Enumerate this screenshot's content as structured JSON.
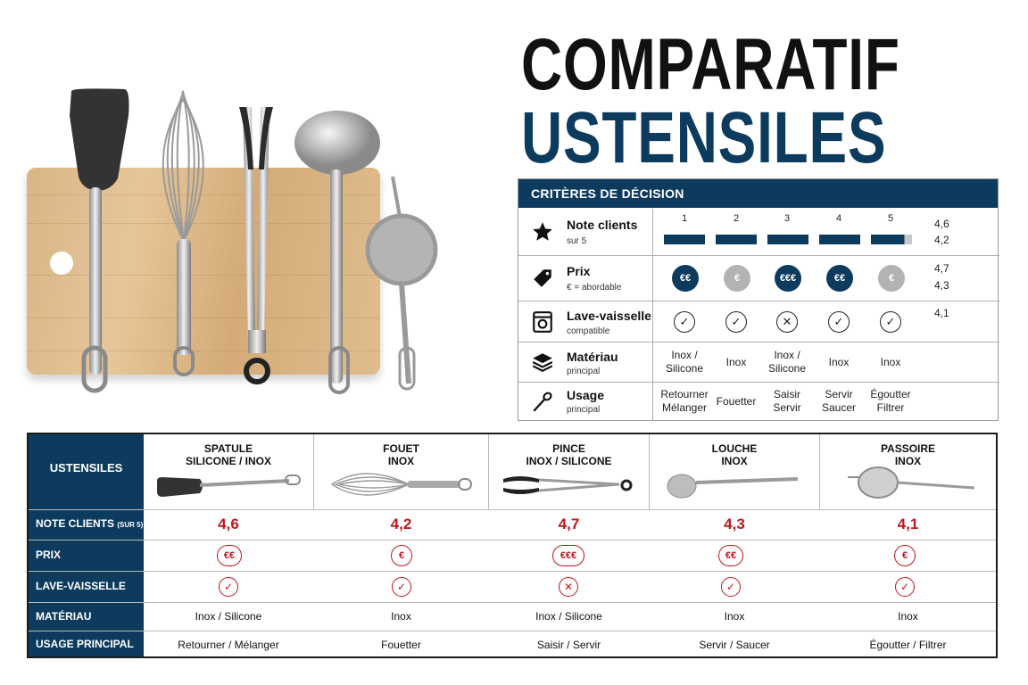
{
  "title": {
    "line1": "COMPARATIF",
    "line2": "USTENSILES"
  },
  "criteria": {
    "header": "CRITÈRES DE DÉCISION",
    "columns": [
      "1",
      "2",
      "3",
      "4",
      "5"
    ],
    "rows": [
      {
        "label": "Note clients",
        "sub": "sur 5",
        "icon": "star-icon"
      },
      {
        "label": "Prix",
        "sub": "€ = abordable",
        "icon": "price-tag-icon"
      },
      {
        "label": "Lave-vaisselle",
        "sub": "compatible",
        "icon": "dishwasher-icon"
      },
      {
        "label": "Matériau",
        "sub": "principal",
        "icon": "layers-icon"
      },
      {
        "label": "Usage",
        "sub": "principal",
        "icon": "spoon-icon"
      }
    ],
    "ratings_bar_fill": [
      1,
      1,
      1,
      1,
      0.82
    ],
    "prix": [
      "€€",
      "€",
      "€€€",
      "€€",
      "€"
    ],
    "prix_style": [
      "dark",
      "grey",
      "dark",
      "dark",
      "grey"
    ],
    "lave": [
      "✓",
      "✓",
      "✕",
      "✓",
      "✓"
    ],
    "materiau": [
      [
        "Inox /",
        "Silicone"
      ],
      [
        "Inox"
      ],
      [
        "Inox /",
        "Silicone"
      ],
      [
        "Inox"
      ],
      [
        "Inox"
      ]
    ],
    "usage": [
      [
        "Retourner",
        "Mélanger"
      ],
      [
        "Fouetter"
      ],
      [
        "Saisir",
        "Servir"
      ],
      [
        "Servir",
        "Saucer"
      ],
      [
        "Égoutter",
        "Filtrer"
      ]
    ],
    "right_numbers": [
      "4,6",
      "4,2",
      "4,7",
      "4,3",
      "4,1"
    ]
  },
  "table": {
    "header_label": "USTENSILES",
    "row_labels": {
      "note": "NOTE CLIENTS",
      "note_small": "(SUR 5)",
      "prix": "PRIX",
      "lave": "LAVE-VAISSELLE",
      "materiau": "MATÉRIAU",
      "usage": "USAGE PRINCIPAL"
    },
    "products": [
      {
        "name1": "SPATULE",
        "name2": "SILICONE / INOX",
        "note": "4,6",
        "prix": "€€",
        "lave": "✓",
        "materiau": "Inox / Silicone",
        "usage": "Retourner / Mélanger",
        "thumb": "spatula-image"
      },
      {
        "name1": "FOUET",
        "name2": "INOX",
        "note": "4,2",
        "prix": "€",
        "lave": "✓",
        "materiau": "Inox",
        "usage": "Fouetter",
        "thumb": "whisk-image"
      },
      {
        "name1": "PINCE",
        "name2": "INOX / SILICONE",
        "note": "4,7",
        "prix": "€€€",
        "lave": "✕",
        "materiau": "Inox / Silicone",
        "usage": "Saisir / Servir",
        "thumb": "tongs-image"
      },
      {
        "name1": "LOUCHE",
        "name2": "INOX",
        "note": "4,3",
        "prix": "€€",
        "lave": "✓",
        "materiau": "Inox",
        "usage": "Servir / Saucer",
        "thumb": "ladle-image"
      },
      {
        "name1": "PASSOIRE",
        "name2": "INOX",
        "note": "4,1",
        "prix": "€",
        "lave": "✓",
        "materiau": "Inox",
        "usage": "Égoutter / Filtrer",
        "thumb": "strainer-image"
      }
    ]
  },
  "colors": {
    "navy": "#0d3b5e",
    "red": "#c0161e",
    "grey": "#b3b3b3"
  }
}
